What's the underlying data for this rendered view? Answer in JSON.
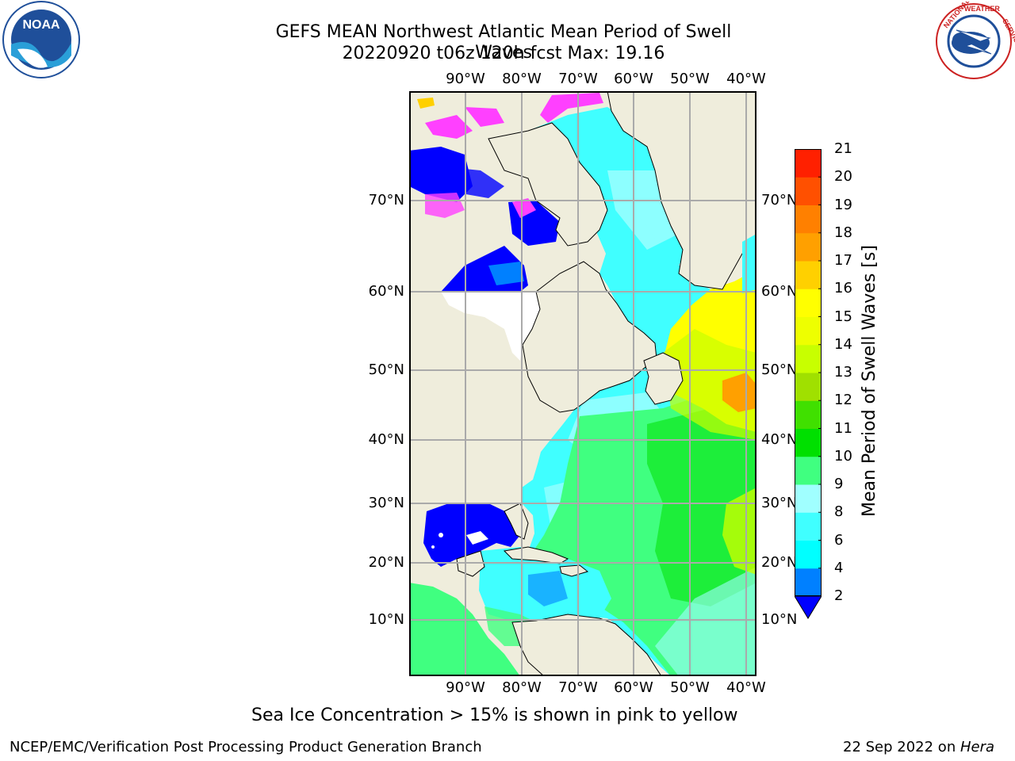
{
  "title": {
    "line1": "GEFS MEAN Northwest Atlantic Mean Period of Swell Waves",
    "line2": "20220920 t06z 120h fcst   Max: 19.16"
  },
  "map": {
    "longitude_labels": [
      "90°W",
      "80°W",
      "70°W",
      "60°W",
      "50°W",
      "40°W"
    ],
    "latitude_labels": [
      "70°N",
      "60°N",
      "50°N",
      "40°N",
      "30°N",
      "20°N",
      "10°N"
    ]
  },
  "colorbar": {
    "label": "Mean Period of Swell Waves [s]",
    "ticks": [
      "2",
      "4",
      "6",
      "8",
      "9",
      "10",
      "11",
      "12",
      "13",
      "14",
      "15",
      "16",
      "17",
      "18",
      "19",
      "20",
      "21"
    ],
    "colors": [
      "#0080ff",
      "#00ffff",
      "#40ffff",
      "#a0ffff",
      "#40ff80",
      "#00e000",
      "#40e000",
      "#a0e000",
      "#c8ff00",
      "#eeff00",
      "#ffff00",
      "#ffd000",
      "#ffa000",
      "#ff8000",
      "#ff5000",
      "#ff2000",
      "#ff0000"
    ],
    "under_color": "#0000ff"
  },
  "footer": {
    "note": "Sea Ice Concentration > 15% is shown in pink to yellow",
    "producer": "NCEP/EMC/Verification Post Processing Product Generation Branch",
    "date": "22 Sep 2022 on",
    "host": "Hera"
  },
  "logos": {
    "left": "NOAA",
    "right": "NATIONAL WEATHER SERVICE"
  }
}
